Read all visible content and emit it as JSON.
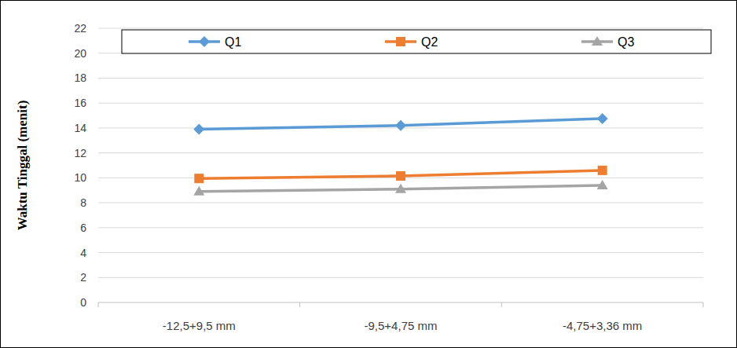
{
  "chart_data": {
    "type": "line",
    "y_label": "Waktu Tinggal (menit)",
    "categories": [
      "-12,5+9,5 mm",
      "-9,5+4,75 mm",
      "-4,75+3,36 mm"
    ],
    "series": [
      {
        "name": "Q1",
        "color": "#5b9bd5",
        "marker": "diamond",
        "values": [
          13.9,
          14.2,
          14.75
        ]
      },
      {
        "name": "Q2",
        "color": "#ed7d31",
        "marker": "square",
        "values": [
          9.95,
          10.15,
          10.6
        ]
      },
      {
        "name": "Q3",
        "color": "#a5a5a5",
        "marker": "triangle",
        "values": [
          8.9,
          9.1,
          9.4
        ]
      }
    ],
    "ylim": [
      0,
      22
    ],
    "yticks": [
      0,
      2,
      4,
      6,
      8,
      10,
      12,
      14,
      16,
      18,
      20,
      22
    ],
    "grid": true,
    "legend": "top"
  }
}
